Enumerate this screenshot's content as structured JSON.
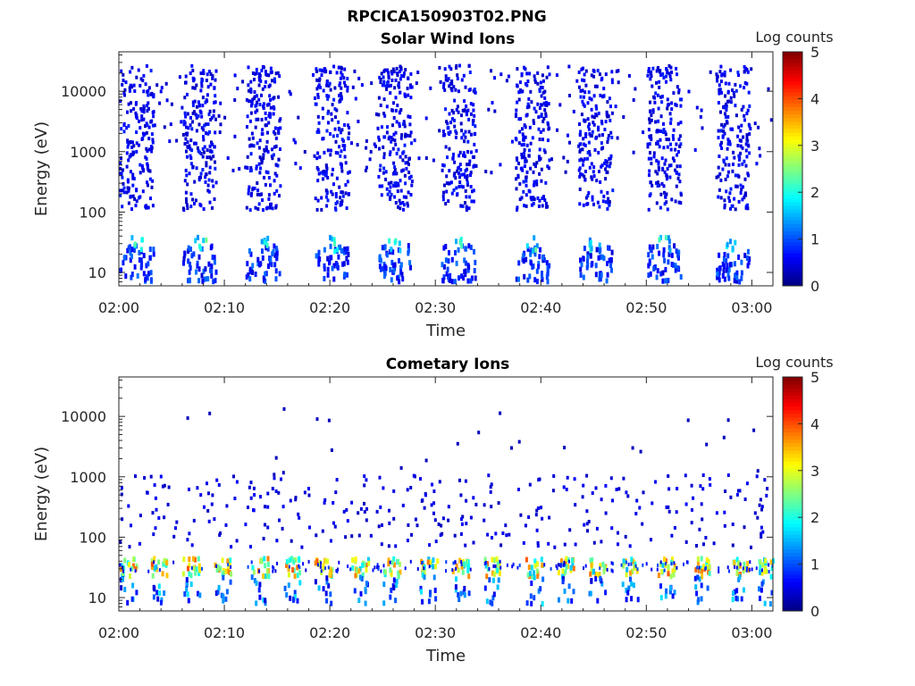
{
  "figure_title": "RPCICA150903T02.PNG",
  "chart_data": [
    {
      "type": "heatmap",
      "title": "Solar Wind Ions",
      "xlabel": "Time",
      "ylabel": "Energy (eV)",
      "x_ticks": [
        "02:00",
        "02:10",
        "02:20",
        "02:30",
        "02:40",
        "02:50",
        "03:00"
      ],
      "x_range": [
        "02:00",
        "03:02"
      ],
      "y_scale": "log",
      "y_ticks": [
        "10",
        "100",
        "1000",
        "10000"
      ],
      "y_range": [
        6,
        45000
      ],
      "colorbar": {
        "label": "Log counts",
        "ticks": [
          "0",
          "1",
          "2",
          "3",
          "4",
          "5"
        ],
        "range": [
          0,
          5
        ],
        "colormap": "jet"
      },
      "sweep_bursts_minutes": [
        0.0,
        6.0,
        12.0,
        18.5,
        24.5,
        30.5,
        37.5,
        43.5,
        50.0,
        56.5
      ],
      "peak_log_counts": 2.5,
      "peak_energy_eV": [
        15,
        40
      ],
      "background": "sparse dots 100 eV - 30000 eV at ~0-1 log counts"
    },
    {
      "type": "heatmap",
      "title": "Cometary Ions",
      "xlabel": "Time",
      "ylabel": "Energy (eV)",
      "x_ticks": [
        "02:00",
        "02:10",
        "02:20",
        "02:30",
        "02:40",
        "02:50",
        "03:00"
      ],
      "x_range": [
        "02:00",
        "03:02"
      ],
      "y_scale": "log",
      "y_ticks": [
        "10",
        "100",
        "1000",
        "10000"
      ],
      "y_range": [
        6,
        45000
      ],
      "colorbar": {
        "label": "Log counts",
        "ticks": [
          "0",
          "1",
          "2",
          "3",
          "4",
          "5"
        ],
        "range": [
          0,
          5
        ],
        "colormap": "jet"
      },
      "bursts_minutes": [
        0.0,
        3.0,
        6.0,
        9.0,
        12.5,
        15.5,
        18.5,
        22.0,
        25.0,
        28.5,
        31.5,
        34.5,
        38.5,
        41.5,
        44.5,
        47.5,
        51.0,
        54.5,
        58.0,
        60.5
      ],
      "peak_log_counts": 4.0,
      "peak_energy_eV": [
        20,
        40
      ],
      "background": "sparse dots 100 eV - 1000 eV, rare up to 12000 eV"
    }
  ]
}
